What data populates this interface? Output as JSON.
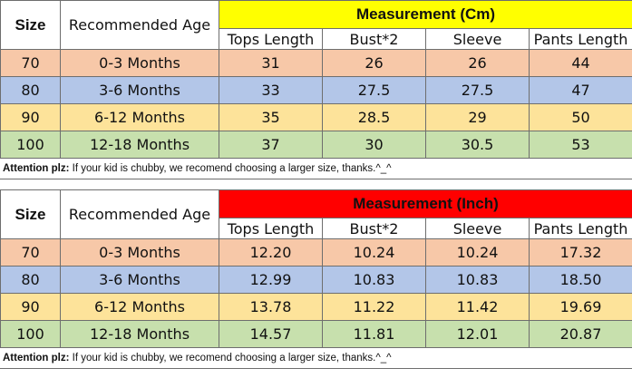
{
  "colors": {
    "cm_header": "#ffff00",
    "inch_header": "#ff0000",
    "row_70": "#f7c8a8",
    "row_80": "#b3c6e8",
    "row_90": "#fde39a",
    "row_100": "#c7e0ad",
    "border": "#6e6e6e"
  },
  "header": {
    "size_label": "Size",
    "age_label": "Recommended Age",
    "columns": [
      "Tops Length",
      "Bust*2",
      "Sleeve",
      "Pants Length"
    ]
  },
  "tables": [
    {
      "measurement_title": "Measurement (Cm)",
      "rows": [
        {
          "size": "70",
          "age": "0-3 Months",
          "values": [
            "31",
            "26",
            "26",
            "44"
          ]
        },
        {
          "size": "80",
          "age": "3-6 Months",
          "values": [
            "33",
            "27.5",
            "27.5",
            "47"
          ]
        },
        {
          "size": "90",
          "age": "6-12 Months",
          "values": [
            "35",
            "28.5",
            "29",
            "50"
          ]
        },
        {
          "size": "100",
          "age": "12-18 Months",
          "values": [
            "37",
            "30",
            "30.5",
            "53"
          ]
        }
      ]
    },
    {
      "measurement_title": "Measurement (Inch)",
      "rows": [
        {
          "size": "70",
          "age": "0-3 Months",
          "values": [
            "12.20",
            "10.24",
            "10.24",
            "17.32"
          ]
        },
        {
          "size": "80",
          "age": "3-6 Months",
          "values": [
            "12.99",
            "10.83",
            "10.83",
            "18.50"
          ]
        },
        {
          "size": "90",
          "age": "6-12 Months",
          "values": [
            "13.78",
            "11.22",
            "11.42",
            "19.69"
          ]
        },
        {
          "size": "100",
          "age": "12-18 Months",
          "values": [
            "14.57",
            "11.81",
            "12.01",
            "20.87"
          ]
        }
      ]
    }
  ],
  "notes": {
    "label": "Attention plz:",
    "text": " If your kid is chubby, we recomend choosing a larger size, thanks.^_^"
  }
}
